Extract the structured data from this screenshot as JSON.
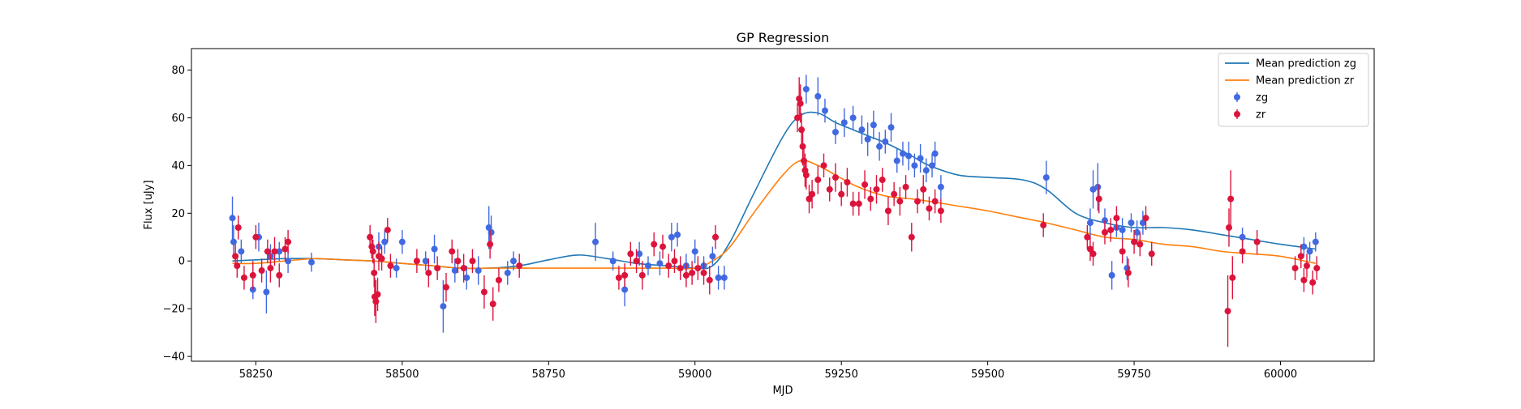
{
  "chart_data": {
    "type": "scatter",
    "title": "GP Regression",
    "xlabel": "MJD",
    "ylabel": "Flux [uJy]",
    "xlim": [
      58140,
      60160
    ],
    "ylim": [
      -42,
      89
    ],
    "xticks": [
      58250,
      58500,
      58750,
      59000,
      59250,
      59500,
      59750,
      60000
    ],
    "yticks": [
      -40,
      -20,
      0,
      20,
      40,
      60,
      80
    ],
    "grid": false,
    "legend_position": "top-right",
    "colors": {
      "mean_zg": "#1f77b4",
      "mean_zr": "#ff7f0e",
      "zg": "#4169e1",
      "zr": "#dc143c"
    },
    "legend": [
      {
        "label": "Mean prediction zg",
        "kind": "line",
        "color": "#1f77b4"
      },
      {
        "label": "Mean prediction zr",
        "kind": "line",
        "color": "#ff7f0e"
      },
      {
        "label": "zg",
        "kind": "errorbar",
        "color": "#4169e1"
      },
      {
        "label": "zr",
        "kind": "errorbar",
        "color": "#dc143c"
      }
    ],
    "lines": [
      {
        "name": "Mean prediction zg",
        "color": "#1f77b4",
        "x": [
          58210,
          58250,
          58300,
          58350,
          58400,
          58450,
          58500,
          58550,
          58600,
          58650,
          58700,
          58750,
          58800,
          58850,
          58900,
          58950,
          59000,
          59030,
          59060,
          59100,
          59150,
          59180,
          59210,
          59240,
          59270,
          59300,
          59330,
          59370,
          59400,
          59450,
          59500,
          59560,
          59600,
          59650,
          59700,
          59750,
          59800,
          59850,
          59900,
          59950,
          60000,
          60060
        ],
        "y": [
          0,
          0.5,
          1,
          1,
          0.5,
          0,
          -1,
          -2,
          -3,
          -3,
          -2,
          0.5,
          2.5,
          1,
          -1,
          -2,
          -3,
          -2,
          8,
          28,
          52,
          61,
          62,
          58,
          55,
          52,
          49,
          44,
          40,
          36,
          35,
          34,
          30,
          20,
          16,
          14,
          14,
          13,
          11,
          9,
          7,
          5
        ]
      },
      {
        "name": "Mean prediction zr",
        "color": "#ff7f0e",
        "x": [
          58210,
          58250,
          58300,
          58350,
          58400,
          58450,
          58500,
          58550,
          58600,
          58650,
          58700,
          58750,
          58800,
          58850,
          58900,
          58950,
          59000,
          59030,
          59060,
          59100,
          59150,
          59180,
          59210,
          59240,
          59270,
          59300,
          59330,
          59370,
          59400,
          59450,
          59500,
          59560,
          59600,
          59650,
          59700,
          59750,
          59800,
          59850,
          59900,
          59950,
          60000,
          60060
        ],
        "y": [
          -1,
          -1,
          0,
          1,
          0.5,
          0,
          -1,
          -2,
          -3,
          -3,
          -3,
          -3,
          -3,
          -3,
          -3,
          -3,
          -3,
          0,
          6,
          20,
          36,
          42,
          40,
          36,
          32,
          29,
          27,
          26,
          25,
          23,
          21,
          18,
          16,
          13,
          10,
          9,
          7,
          6,
          4,
          3,
          2,
          -1
        ]
      }
    ],
    "series": [
      {
        "name": "zg",
        "color": "#4169e1",
        "points": [
          [
            58210,
            18,
            9
          ],
          [
            58212,
            8,
            7
          ],
          [
            58225,
            4,
            5
          ],
          [
            58245,
            -12,
            4
          ],
          [
            58255,
            10,
            6
          ],
          [
            58268,
            -13,
            9
          ],
          [
            58275,
            2,
            5
          ],
          [
            58290,
            4,
            4
          ],
          [
            58305,
            0,
            5
          ],
          [
            58345,
            -0.5,
            4
          ],
          [
            58460,
            6,
            6
          ],
          [
            58470,
            8,
            5
          ],
          [
            58490,
            -3,
            4
          ],
          [
            58500,
            8,
            5
          ],
          [
            58540,
            0,
            4
          ],
          [
            58555,
            5,
            6
          ],
          [
            58570,
            -19,
            11
          ],
          [
            58590,
            -4,
            5
          ],
          [
            58610,
            -7,
            5
          ],
          [
            58630,
            -4,
            6
          ],
          [
            58648,
            14,
            9
          ],
          [
            58652,
            12,
            7
          ],
          [
            58680,
            -5,
            5
          ],
          [
            58690,
            0,
            4
          ],
          [
            58830,
            8,
            8
          ],
          [
            58860,
            0,
            4
          ],
          [
            58880,
            -12,
            7
          ],
          [
            58905,
            3,
            5
          ],
          [
            58920,
            -2,
            4
          ],
          [
            58940,
            -1,
            5
          ],
          [
            58960,
            10,
            6
          ],
          [
            58970,
            11,
            5
          ],
          [
            58985,
            -2,
            5
          ],
          [
            59000,
            4,
            5
          ],
          [
            59015,
            -2,
            4
          ],
          [
            59030,
            2,
            4
          ],
          [
            59040,
            -7,
            5
          ],
          [
            59050,
            -7,
            5
          ],
          [
            59190,
            72,
            6
          ],
          [
            59210,
            69,
            8
          ],
          [
            59222,
            63,
            5
          ],
          [
            59240,
            54,
            5
          ],
          [
            59255,
            58,
            6
          ],
          [
            59270,
            60,
            5
          ],
          [
            59285,
            55,
            6
          ],
          [
            59295,
            51,
            7
          ],
          [
            59305,
            57,
            6
          ],
          [
            59315,
            48,
            6
          ],
          [
            59325,
            50,
            5
          ],
          [
            59335,
            56,
            6
          ],
          [
            59345,
            42,
            5
          ],
          [
            59355,
            45,
            5
          ],
          [
            59365,
            44,
            6
          ],
          [
            59375,
            40,
            5
          ],
          [
            59385,
            43,
            6
          ],
          [
            59395,
            38,
            5
          ],
          [
            59405,
            40,
            5
          ],
          [
            59410,
            45,
            5
          ],
          [
            59420,
            31,
            5
          ],
          [
            59600,
            35,
            7
          ],
          [
            59675,
            16,
            6
          ],
          [
            59680,
            30,
            8
          ],
          [
            59688,
            31,
            10
          ],
          [
            59700,
            17,
            5
          ],
          [
            59712,
            -6,
            6
          ],
          [
            59720,
            14,
            4
          ],
          [
            59730,
            13,
            5
          ],
          [
            59738,
            -3,
            5
          ],
          [
            59745,
            16,
            4
          ],
          [
            59755,
            12,
            5
          ],
          [
            59765,
            16,
            5
          ],
          [
            59935,
            10,
            4
          ],
          [
            60040,
            6,
            4
          ],
          [
            60050,
            4,
            4
          ],
          [
            60060,
            8,
            4
          ]
        ]
      },
      {
        "name": "zr",
        "color": "#dc143c",
        "points": [
          [
            58215,
            2,
            5
          ],
          [
            58218,
            -2,
            5
          ],
          [
            58220,
            14,
            5
          ],
          [
            58230,
            -7,
            5
          ],
          [
            58245,
            -6,
            6
          ],
          [
            58250,
            10,
            5
          ],
          [
            58260,
            -4,
            5
          ],
          [
            58270,
            4,
            5
          ],
          [
            58275,
            -3,
            6
          ],
          [
            58282,
            4,
            6
          ],
          [
            58290,
            -6,
            5
          ],
          [
            58300,
            5,
            5
          ],
          [
            58305,
            8,
            5
          ],
          [
            58445,
            10,
            5
          ],
          [
            58448,
            6,
            5
          ],
          [
            58450,
            4,
            5
          ],
          [
            58452,
            -5,
            6
          ],
          [
            58453,
            -15,
            8
          ],
          [
            58455,
            -17,
            9
          ],
          [
            58458,
            -14,
            7
          ],
          [
            58460,
            2,
            6
          ],
          [
            58465,
            1,
            5
          ],
          [
            58475,
            13,
            5
          ],
          [
            58480,
            -2,
            5
          ],
          [
            58525,
            0,
            5
          ],
          [
            58545,
            -5,
            6
          ],
          [
            58560,
            -3,
            5
          ],
          [
            58575,
            -11,
            6
          ],
          [
            58585,
            4,
            5
          ],
          [
            58595,
            0,
            5
          ],
          [
            58605,
            -3,
            6
          ],
          [
            58620,
            0,
            5
          ],
          [
            58640,
            -13,
            7
          ],
          [
            58650,
            7,
            6
          ],
          [
            58655,
            -18,
            7
          ],
          [
            58665,
            -8,
            5
          ],
          [
            58700,
            -2,
            5
          ],
          [
            58870,
            -7,
            5
          ],
          [
            58880,
            -6,
            5
          ],
          [
            58890,
            3,
            5
          ],
          [
            58900,
            0,
            5
          ],
          [
            58910,
            -6,
            6
          ],
          [
            58930,
            7,
            5
          ],
          [
            58945,
            6,
            5
          ],
          [
            58955,
            -2,
            5
          ],
          [
            58965,
            0,
            5
          ],
          [
            58975,
            -3,
            5
          ],
          [
            58985,
            -6,
            5
          ],
          [
            58995,
            -5,
            5
          ],
          [
            59005,
            -3,
            5
          ],
          [
            59015,
            -5,
            5
          ],
          [
            59025,
            -8,
            6
          ],
          [
            59035,
            10,
            5
          ],
          [
            59175,
            60,
            6
          ],
          [
            59178,
            68,
            9
          ],
          [
            59180,
            66,
            8
          ],
          [
            59182,
            55,
            7
          ],
          [
            59184,
            48,
            8
          ],
          [
            59186,
            42,
            6
          ],
          [
            59188,
            38,
            7
          ],
          [
            59190,
            36,
            6
          ],
          [
            59195,
            26,
            6
          ],
          [
            59200,
            28,
            6
          ],
          [
            59210,
            34,
            6
          ],
          [
            59220,
            40,
            5
          ],
          [
            59230,
            30,
            5
          ],
          [
            59240,
            35,
            6
          ],
          [
            59250,
            28,
            5
          ],
          [
            59260,
            33,
            6
          ],
          [
            59270,
            24,
            5
          ],
          [
            59280,
            24,
            5
          ],
          [
            59290,
            32,
            6
          ],
          [
            59300,
            26,
            5
          ],
          [
            59310,
            30,
            6
          ],
          [
            59320,
            34,
            5
          ],
          [
            59330,
            21,
            6
          ],
          [
            59340,
            28,
            5
          ],
          [
            59350,
            25,
            6
          ],
          [
            59360,
            31,
            5
          ],
          [
            59370,
            10,
            6
          ],
          [
            59380,
            25,
            5
          ],
          [
            59390,
            30,
            6
          ],
          [
            59400,
            22,
            5
          ],
          [
            59410,
            25,
            5
          ],
          [
            59420,
            21,
            5
          ],
          [
            59595,
            15,
            5
          ],
          [
            59670,
            10,
            5
          ],
          [
            59675,
            5,
            5
          ],
          [
            59680,
            3,
            5
          ],
          [
            59690,
            26,
            6
          ],
          [
            59700,
            12,
            5
          ],
          [
            59710,
            13,
            5
          ],
          [
            59720,
            18,
            5
          ],
          [
            59730,
            4,
            5
          ],
          [
            59740,
            -5,
            6
          ],
          [
            59750,
            8,
            5
          ],
          [
            59760,
            7,
            5
          ],
          [
            59770,
            18,
            5
          ],
          [
            59780,
            3,
            5
          ],
          [
            59910,
            -21,
            15
          ],
          [
            59912,
            14,
            8
          ],
          [
            59915,
            26,
            12
          ],
          [
            59918,
            -7,
            9
          ],
          [
            59935,
            4,
            5
          ],
          [
            59960,
            8,
            5
          ],
          [
            60025,
            -3,
            5
          ],
          [
            60035,
            2,
            5
          ],
          [
            60040,
            -8,
            5
          ],
          [
            60045,
            -2,
            5
          ],
          [
            60055,
            -9,
            5
          ],
          [
            60062,
            -3,
            5
          ]
        ]
      }
    ]
  }
}
